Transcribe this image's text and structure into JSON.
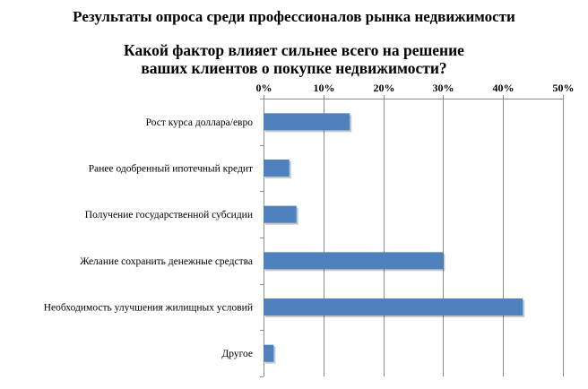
{
  "header": {
    "title": "Результаты опроса среди профессионалов рынка недвижимости",
    "question_line1": "Какой фактор влияет сильнее всего на решение",
    "question_line2": "ваших клиентов о покупке недвижимости?"
  },
  "chart_data": {
    "type": "bar",
    "orientation": "horizontal",
    "categories": [
      "Рост курса доллара/евро",
      "Ранее одобренный ипотечный кредит",
      "Получение государственной субсидии",
      "Желание сохранить денежные средства",
      "Необходимость улучшения жилищных условий",
      "Другое"
    ],
    "values": [
      14.4,
      4.3,
      5.5,
      30.0,
      43.3,
      1.7
    ],
    "xlim": [
      0,
      50
    ],
    "x_ticks": [
      "0%",
      "10%",
      "20%",
      "30%",
      "40%",
      "50%"
    ],
    "x_axis_position": "top",
    "grid": true,
    "legend": "none",
    "bar_color": "#4F81BD"
  }
}
